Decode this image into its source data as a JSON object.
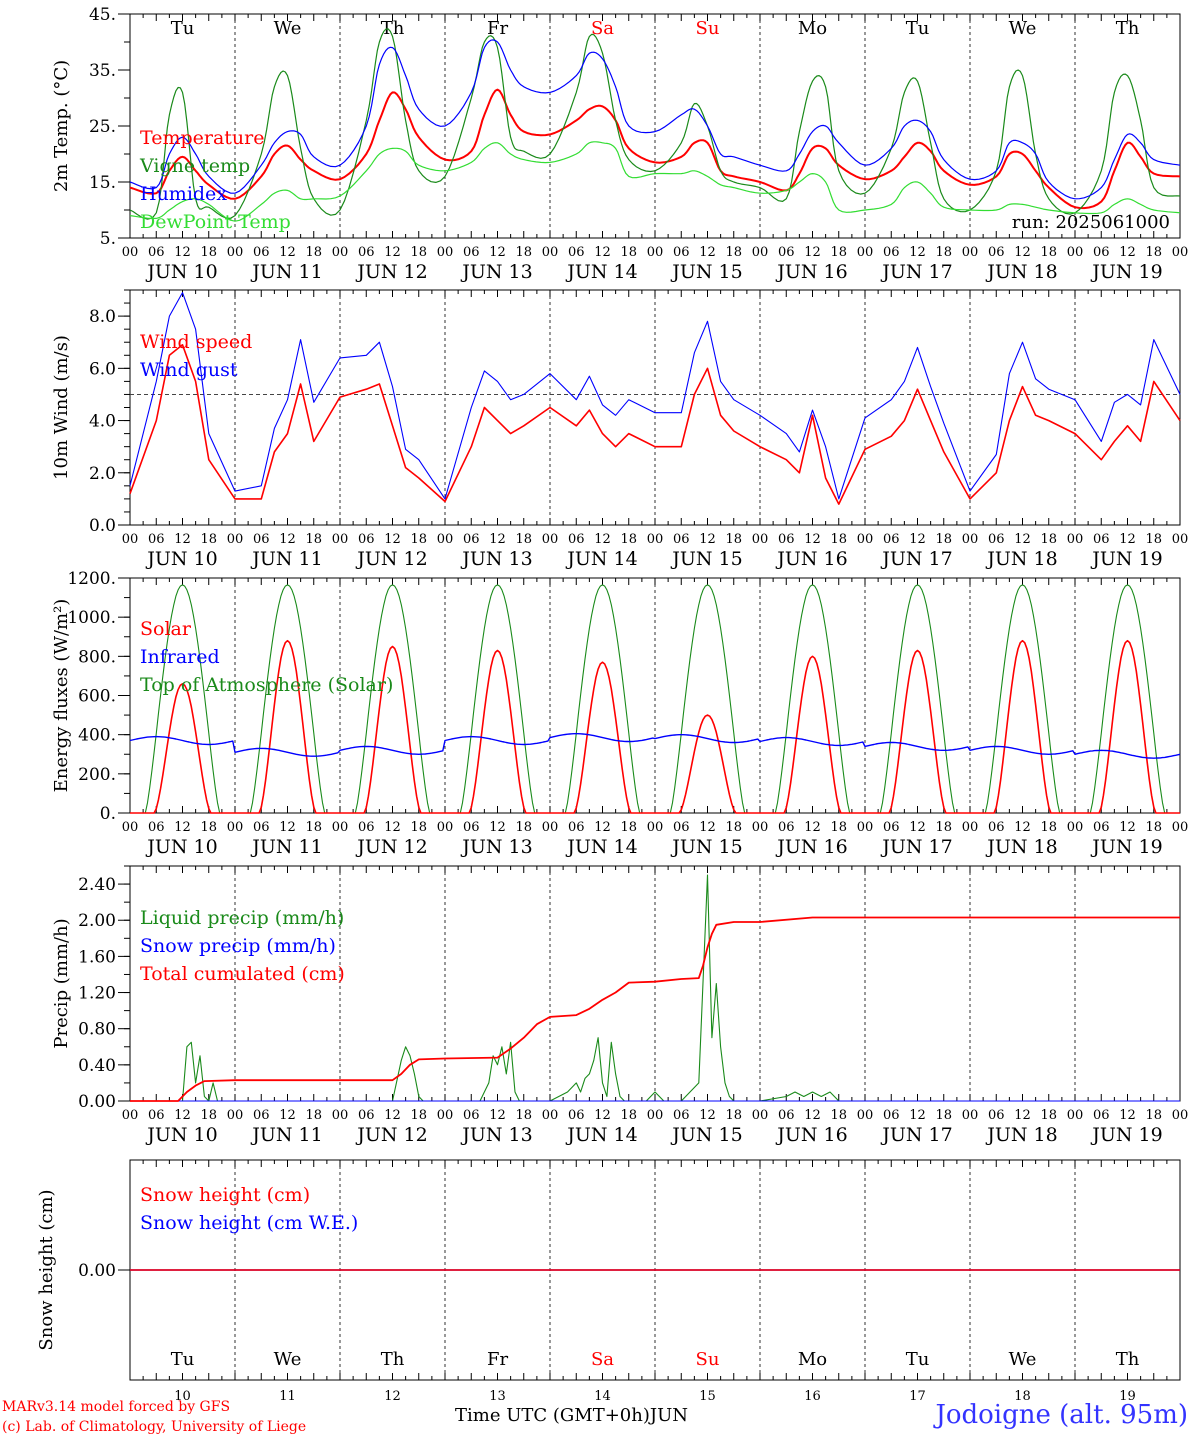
{
  "footer": {
    "credit_line_1": "MARv3.14 model forced by GFS",
    "credit_line_2": "(c) Lab. of Climatology, University of Liege",
    "xlabel": "Time UTC (GMT+0h)",
    "month": "JUN",
    "station": "Jodoigne (alt. 95m)"
  },
  "colors": {
    "red": "#ff0000",
    "green": "#1a8a1a",
    "blue": "#0000ff",
    "lightgreen": "#33dd33",
    "weekend": "#ff0000",
    "station": "#3333ff"
  },
  "chart_data": [
    {
      "type": "line",
      "ylabel": "2m Temp. (°C)",
      "ylim": [
        5,
        45
      ],
      "yticks": [
        5,
        15,
        25,
        35,
        45
      ],
      "ytick_labels": [
        "5.",
        "15.",
        "25.",
        "35.",
        "45."
      ],
      "ytick_step_minor": 5,
      "run_label": "run: 2025061000",
      "weekdays": [
        "Tu",
        "We",
        "Th",
        "Fr",
        "Sa",
        "Su",
        "Mo",
        "Tu",
        "We",
        "Th"
      ],
      "weekend_days": [
        4,
        5
      ],
      "days": [
        "JUN 10",
        "JUN 11",
        "JUN 12",
        "JUN 13",
        "JUN 14",
        "JUN 15",
        "JUN 16",
        "JUN 17",
        "JUN 18",
        "JUN 19"
      ],
      "hour_ticks": [
        "00",
        "06",
        "12",
        "18"
      ],
      "x_hours": [
        0,
        6,
        9,
        12,
        15,
        18,
        24,
        30,
        33,
        36,
        39,
        42,
        48,
        54,
        57,
        60,
        63,
        66,
        72,
        78,
        81,
        84,
        87,
        90,
        96,
        102,
        105,
        108,
        111,
        114,
        120,
        126,
        129,
        132,
        135,
        138,
        144,
        150,
        153,
        156,
        159,
        162,
        168,
        174,
        177,
        180,
        183,
        186,
        192,
        198,
        201,
        204,
        207,
        210,
        216,
        222,
        225,
        228,
        231,
        234,
        240
      ],
      "series": [
        {
          "name": "Temperature",
          "color": "red",
          "values": [
            14,
            13,
            17,
            19.5,
            17,
            14.5,
            12,
            16,
            20,
            21.5,
            19,
            17,
            15.5,
            20,
            26,
            31,
            28,
            23,
            19,
            20.5,
            27,
            31.5,
            27,
            24,
            23.5,
            26,
            28,
            28.5,
            26,
            21,
            18.5,
            19.5,
            22,
            22,
            17,
            16,
            15,
            13.5,
            16.5,
            21,
            21,
            18,
            15.5,
            17,
            19.5,
            22,
            20.5,
            17,
            14.5,
            16,
            20,
            20,
            17,
            14,
            10.5,
            11.5,
            17,
            22,
            19.5,
            16.5,
            16
          ]
        },
        {
          "name": "Vigne temp",
          "color": "green",
          "values": [
            10,
            9.5,
            27,
            31,
            12,
            10.5,
            9,
            20,
            32,
            34,
            21,
            12,
            10,
            26,
            40,
            41,
            26,
            17,
            16,
            30,
            40,
            39,
            23,
            20.5,
            20,
            31,
            41,
            38,
            26,
            19,
            17,
            22,
            29,
            25,
            17,
            15,
            14,
            12,
            24,
            33,
            32,
            17,
            13,
            21,
            31,
            33,
            22,
            12,
            10,
            17,
            32,
            34,
            20,
            12,
            9.5,
            17,
            31,
            34,
            26,
            14,
            12.5
          ]
        },
        {
          "name": "Humidex",
          "color": "blue",
          "values": [
            15,
            14,
            20,
            23,
            20,
            16,
            13,
            18,
            22,
            24,
            23.5,
            19.5,
            18,
            25,
            36,
            39,
            34,
            28,
            25,
            31,
            39,
            40,
            35,
            32,
            31,
            34,
            38,
            37,
            32,
            25,
            24,
            27,
            28,
            25,
            20,
            19.5,
            18,
            17,
            20,
            24,
            25,
            22,
            18,
            21,
            25,
            26,
            24,
            19,
            15.5,
            17,
            22,
            22,
            20,
            15,
            12,
            14,
            19,
            23.5,
            22,
            19,
            18
          ]
        },
        {
          "name": "DewPoint Temp",
          "color": "lightgreen",
          "values": [
            9,
            8.5,
            10,
            11.5,
            12,
            11,
            8,
            11,
            13,
            13.5,
            12,
            12,
            12.5,
            17,
            20,
            21,
            20.5,
            18,
            17,
            18.5,
            21,
            22,
            20,
            19,
            18.5,
            20,
            22,
            22,
            21,
            16,
            16.5,
            16.5,
            17,
            16,
            14.5,
            14,
            13,
            13.5,
            15,
            16.5,
            15,
            10,
            10,
            11,
            14,
            15,
            13,
            10.5,
            10,
            10,
            11,
            11,
            10.5,
            10,
            9.5,
            9.5,
            11,
            12,
            11,
            10,
            9.5
          ]
        }
      ]
    },
    {
      "type": "line",
      "ylabel": "10m Wind (m/s)",
      "ylim": [
        0,
        9
      ],
      "yticks": [
        0,
        2,
        4,
        6,
        8
      ],
      "ytick_labels": [
        "0.0",
        "2.0",
        "4.0",
        "6.0",
        "8.0"
      ],
      "ytick_step_minor": 0.5,
      "reference_line": 5,
      "days": [
        "JUN 10",
        "JUN 11",
        "JUN 12",
        "JUN 13",
        "JUN 14",
        "JUN 15",
        "JUN 16",
        "JUN 17",
        "JUN 18",
        "JUN 19"
      ],
      "hour_ticks": [
        "00",
        "06",
        "12",
        "18"
      ],
      "x_hours": [
        0,
        6,
        9,
        12,
        15,
        18,
        24,
        30,
        33,
        36,
        39,
        42,
        48,
        54,
        57,
        60,
        63,
        66,
        72,
        78,
        81,
        84,
        87,
        90,
        96,
        102,
        105,
        108,
        111,
        114,
        120,
        126,
        129,
        132,
        135,
        138,
        144,
        150,
        153,
        156,
        159,
        162,
        168,
        174,
        177,
        180,
        183,
        186,
        192,
        198,
        201,
        204,
        207,
        210,
        216,
        222,
        225,
        228,
        231,
        234,
        240
      ],
      "series": [
        {
          "name": "Wind speed",
          "color": "red",
          "values": [
            1.2,
            4,
            6.5,
            6.9,
            5.5,
            2.5,
            1.0,
            1.0,
            2.8,
            3.5,
            5.4,
            3.2,
            4.9,
            5.2,
            5.4,
            3.8,
            2.2,
            1.8,
            0.9,
            3.0,
            4.5,
            4.0,
            3.5,
            3.8,
            4.5,
            3.8,
            4.4,
            3.5,
            3.0,
            3.5,
            3.0,
            3.0,
            5.0,
            6.0,
            4.2,
            3.6,
            3.0,
            2.5,
            2.0,
            4.2,
            1.8,
            0.8,
            2.9,
            3.4,
            4.0,
            5.2,
            4.0,
            2.8,
            1.0,
            2.0,
            4.0,
            5.3,
            4.2,
            4.0,
            3.5,
            2.5,
            3.2,
            3.8,
            3.2,
            5.5,
            4.0
          ]
        },
        {
          "name": "Wind gust",
          "color": "blue",
          "values": [
            1.5,
            5.5,
            8.0,
            8.9,
            7.5,
            3.5,
            1.3,
            1.5,
            3.7,
            4.8,
            7.1,
            4.7,
            6.4,
            6.5,
            7.0,
            5.3,
            2.9,
            2.5,
            1.0,
            4.5,
            5.9,
            5.5,
            4.8,
            5.0,
            5.8,
            4.8,
            5.7,
            4.6,
            4.2,
            4.8,
            4.3,
            4.3,
            6.6,
            7.8,
            5.5,
            4.8,
            4.2,
            3.5,
            2.8,
            4.4,
            3.0,
            1.0,
            4.1,
            4.8,
            5.5,
            6.8,
            5.3,
            3.9,
            1.3,
            2.7,
            5.8,
            7.0,
            5.6,
            5.2,
            4.8,
            3.2,
            4.7,
            5.0,
            4.6,
            7.1,
            5.0
          ]
        }
      ]
    },
    {
      "type": "line",
      "ylabel": "Energy fluxes (W/m²)",
      "ylim": [
        0,
        1200
      ],
      "yticks": [
        0,
        200,
        400,
        600,
        800,
        1000,
        1200
      ],
      "ytick_labels": [
        "0.",
        "200.",
        "400.",
        "600.",
        "800.",
        "1000.",
        "1200."
      ],
      "ytick_step_minor": 100,
      "days": [
        "JUN 10",
        "JUN 11",
        "JUN 12",
        "JUN 13",
        "JUN 14",
        "JUN 15",
        "JUN 16",
        "JUN 17",
        "JUN 18",
        "JUN 19"
      ],
      "hour_ticks": [
        "00",
        "06",
        "12",
        "18"
      ],
      "solar_daily_peak": [
        660,
        880,
        850,
        830,
        770,
        500,
        800,
        830,
        880,
        880
      ],
      "toa_peak": 1165,
      "infrared_daily": [
        370,
        310,
        320,
        370,
        385,
        380,
        365,
        340,
        320,
        300
      ],
      "series": [
        {
          "name": "Solar",
          "color": "red"
        },
        {
          "name": "Infrared",
          "color": "blue"
        },
        {
          "name": "Top of Atmosphere (Solar)",
          "color": "green"
        }
      ]
    },
    {
      "type": "line",
      "ylabel": "Precip (mm/h)",
      "ylim": [
        0,
        2.6
      ],
      "yticks": [
        0,
        0.4,
        0.8,
        1.2,
        1.6,
        2.0,
        2.4
      ],
      "ytick_labels": [
        "0.00",
        "0.40",
        "0.80",
        "1.20",
        "1.60",
        "2.00",
        "2.40"
      ],
      "ytick_step_minor": 0.2,
      "days": [
        "JUN 10",
        "JUN 11",
        "JUN 12",
        "JUN 13",
        "JUN 14",
        "JUN 15",
        "JUN 16",
        "JUN 17",
        "JUN 18",
        "JUN 19"
      ],
      "hour_ticks": [
        "00",
        "06",
        "12",
        "18"
      ],
      "series": [
        {
          "name": "Liquid precip (mm/h)",
          "color": "green",
          "x_hours": [
            0,
            12,
            13,
            14,
            15,
            16,
            17,
            18,
            19,
            20,
            24,
            60,
            62,
            63,
            64,
            65,
            66,
            67,
            68,
            80,
            82,
            83,
            84,
            85,
            86,
            87,
            88,
            89,
            90,
            96,
            100,
            102,
            103,
            104,
            105,
            106,
            107,
            108,
            109,
            110,
            111,
            112,
            113,
            114,
            118,
            120,
            122,
            126,
            130,
            132,
            133,
            134,
            135,
            136,
            137,
            138,
            140,
            144,
            150,
            152,
            154,
            156,
            158,
            160,
            162,
            240
          ],
          "values": [
            0,
            0,
            0.6,
            0.65,
            0.2,
            0.5,
            0.05,
            0,
            0.2,
            0,
            0,
            0,
            0.45,
            0.6,
            0.5,
            0.3,
            0.05,
            0,
            0,
            0,
            0.2,
            0.5,
            0.4,
            0.6,
            0.3,
            0.65,
            0.1,
            0,
            0,
            0,
            0.1,
            0.2,
            0.1,
            0.25,
            0.3,
            0.45,
            0.7,
            0.2,
            0.05,
            0.65,
            0.3,
            0.05,
            0,
            0,
            0,
            0.1,
            0,
            0,
            0.2,
            2.5,
            0.7,
            1.3,
            0.6,
            0.2,
            0.05,
            0,
            0,
            0,
            0.05,
            0.1,
            0.05,
            0.1,
            0.05,
            0.1,
            0,
            0
          ]
        },
        {
          "name": "Snow precip (mm/h)",
          "color": "blue",
          "x_hours": [
            0,
            240
          ],
          "values": [
            0,
            0
          ]
        },
        {
          "name": "Total cumulated (cm)",
          "color": "red",
          "x_hours": [
            0,
            11,
            13,
            15,
            17,
            24,
            60,
            62,
            64,
            66,
            72,
            84,
            87,
            90,
            93,
            96,
            102,
            105,
            108,
            111,
            114,
            120,
            126,
            130,
            131,
            132,
            133,
            134,
            138,
            144,
            156,
            240
          ],
          "values": [
            0,
            0,
            0.1,
            0.17,
            0.22,
            0.23,
            0.23,
            0.3,
            0.4,
            0.46,
            0.47,
            0.48,
            0.58,
            0.7,
            0.85,
            0.93,
            0.95,
            1.02,
            1.12,
            1.2,
            1.31,
            1.32,
            1.35,
            1.36,
            1.5,
            1.7,
            1.85,
            1.95,
            1.98,
            1.98,
            2.03,
            2.03
          ]
        }
      ]
    },
    {
      "type": "line",
      "ylabel": "Snow height (cm)",
      "zero_label": "0.00",
      "weekdays": [
        "Tu",
        "We",
        "Th",
        "Fr",
        "Sa",
        "Su",
        "Mo",
        "Tu",
        "We",
        "Th"
      ],
      "weekend_days": [
        4,
        5
      ],
      "day_numbers": [
        "10",
        "11",
        "12",
        "13",
        "14",
        "15",
        "16",
        "17",
        "18",
        "19"
      ],
      "series": [
        {
          "name": "Snow height (cm)",
          "color": "red",
          "x_hours": [
            0,
            240
          ],
          "values": [
            0,
            0
          ]
        },
        {
          "name": "Snow height (cm W.E.)",
          "color": "blue",
          "x_hours": [
            0,
            240
          ],
          "values": [
            0,
            0
          ]
        }
      ]
    }
  ]
}
